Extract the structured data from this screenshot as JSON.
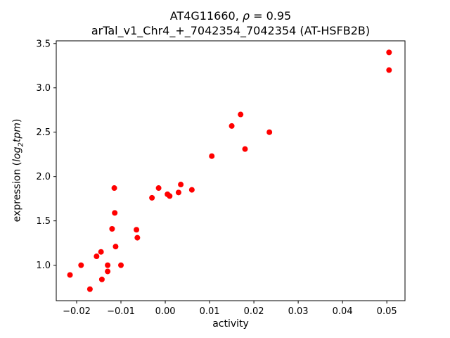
{
  "figure": {
    "title": {
      "line1_prefix": "AT4G11660, ",
      "line1_rho": "ρ",
      "line1_suffix": " = 0.95",
      "line2": "arTal_v1_Chr4_+_7042354_7042354 (AT-HSFB2B)"
    },
    "xlabel": "activity",
    "ylabel_prefix": "expression (",
    "ylabel_log": "log",
    "ylabel_sub": "2",
    "ylabel_tpm": "tpm",
    "ylabel_suffix": ")"
  },
  "chart_data": {
    "type": "scatter",
    "title": "AT4G11660, ρ = 0.95\narTal_v1_Chr4_+_7042354_7042354 (AT-HSFB2B)",
    "xlabel": "activity",
    "ylabel": "expression (log2tpm)",
    "legend": "none",
    "grid": false,
    "marker_color": "#ff0000",
    "marker_radius": 4,
    "xlim": [
      -0.0246,
      0.0541
    ],
    "ylim": [
      0.6,
      3.53
    ],
    "xticks": [
      -0.02,
      -0.01,
      0.0,
      0.01,
      0.02,
      0.03,
      0.04,
      0.05
    ],
    "yticks": [
      1.0,
      1.5,
      2.0,
      2.5,
      3.0,
      3.5
    ],
    "points": [
      [
        -0.0215,
        0.89
      ],
      [
        -0.019,
        1.0
      ],
      [
        -0.017,
        0.73
      ],
      [
        -0.0155,
        1.1
      ],
      [
        -0.0145,
        1.15
      ],
      [
        -0.0143,
        0.84
      ],
      [
        -0.013,
        1.0
      ],
      [
        -0.013,
        0.93
      ],
      [
        -0.012,
        1.41
      ],
      [
        -0.0115,
        1.87
      ],
      [
        -0.0114,
        1.59
      ],
      [
        -0.0112,
        1.21
      ],
      [
        -0.01,
        1.0
      ],
      [
        -0.0065,
        1.4
      ],
      [
        -0.0063,
        1.31
      ],
      [
        -0.003,
        1.76
      ],
      [
        -0.0015,
        1.87
      ],
      [
        0.0005,
        1.8
      ],
      [
        0.001,
        1.78
      ],
      [
        0.003,
        1.82
      ],
      [
        0.0035,
        1.91
      ],
      [
        0.006,
        1.85
      ],
      [
        0.0105,
        2.23
      ],
      [
        0.015,
        2.57
      ],
      [
        0.017,
        2.7
      ],
      [
        0.018,
        2.31
      ],
      [
        0.0235,
        2.5
      ],
      [
        0.0505,
        3.4
      ],
      [
        0.0505,
        3.2
      ]
    ]
  }
}
